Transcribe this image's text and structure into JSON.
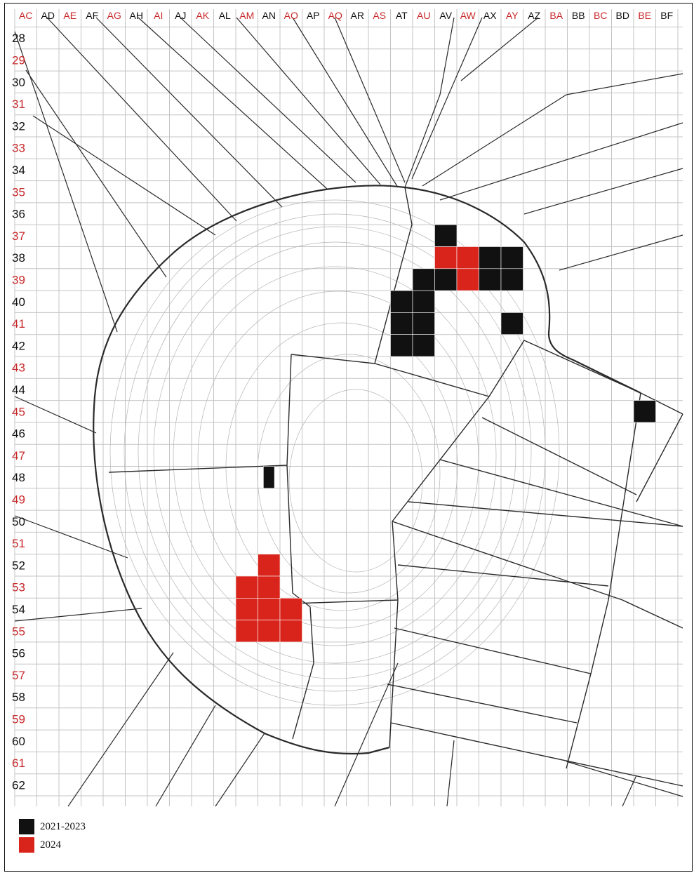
{
  "map": {
    "column_labels": [
      {
        "text": "AC",
        "color": "red"
      },
      {
        "text": "AD",
        "color": "black"
      },
      {
        "text": "AE",
        "color": "red"
      },
      {
        "text": "AF",
        "color": "black"
      },
      {
        "text": "AG",
        "color": "red"
      },
      {
        "text": "AH",
        "color": "black"
      },
      {
        "text": "AI",
        "color": "red"
      },
      {
        "text": "AJ",
        "color": "black"
      },
      {
        "text": "AK",
        "color": "red"
      },
      {
        "text": "AL",
        "color": "black"
      },
      {
        "text": "AM",
        "color": "red"
      },
      {
        "text": "AN",
        "color": "black"
      },
      {
        "text": "AO",
        "color": "red"
      },
      {
        "text": "AP",
        "color": "black"
      },
      {
        "text": "AQ",
        "color": "red"
      },
      {
        "text": "AR",
        "color": "black"
      },
      {
        "text": "AS",
        "color": "red"
      },
      {
        "text": "AT",
        "color": "black"
      },
      {
        "text": "AU",
        "color": "red"
      },
      {
        "text": "AV",
        "color": "black"
      },
      {
        "text": "AW",
        "color": "red"
      },
      {
        "text": "AX",
        "color": "black"
      },
      {
        "text": "AY",
        "color": "red"
      },
      {
        "text": "AZ",
        "color": "black"
      },
      {
        "text": "BA",
        "color": "red"
      },
      {
        "text": "BB",
        "color": "black"
      },
      {
        "text": "BC",
        "color": "red"
      },
      {
        "text": "BD",
        "color": "black"
      },
      {
        "text": "BE",
        "color": "red"
      },
      {
        "text": "BF",
        "color": "black"
      }
    ],
    "row_labels": [
      {
        "text": "28",
        "color": "black"
      },
      {
        "text": "29",
        "color": "red"
      },
      {
        "text": "30",
        "color": "black"
      },
      {
        "text": "31",
        "color": "red"
      },
      {
        "text": "32",
        "color": "black"
      },
      {
        "text": "33",
        "color": "red"
      },
      {
        "text": "34",
        "color": "black"
      },
      {
        "text": "35",
        "color": "red"
      },
      {
        "text": "36",
        "color": "black"
      },
      {
        "text": "37",
        "color": "red"
      },
      {
        "text": "38",
        "color": "black"
      },
      {
        "text": "39",
        "color": "red"
      },
      {
        "text": "40",
        "color": "black"
      },
      {
        "text": "41",
        "color": "red"
      },
      {
        "text": "42",
        "color": "black"
      },
      {
        "text": "43",
        "color": "red"
      },
      {
        "text": "44",
        "color": "black"
      },
      {
        "text": "45",
        "color": "red"
      },
      {
        "text": "46",
        "color": "black"
      },
      {
        "text": "47",
        "color": "red"
      },
      {
        "text": "48",
        "color": "black"
      },
      {
        "text": "49",
        "color": "red"
      },
      {
        "text": "50",
        "color": "black"
      },
      {
        "text": "51",
        "color": "red"
      },
      {
        "text": "52",
        "color": "black"
      },
      {
        "text": "53",
        "color": "red"
      },
      {
        "text": "54",
        "color": "black"
      },
      {
        "text": "55",
        "color": "red"
      },
      {
        "text": "56",
        "color": "black"
      },
      {
        "text": "57",
        "color": "red"
      },
      {
        "text": "58",
        "color": "black"
      },
      {
        "text": "59",
        "color": "red"
      },
      {
        "text": "60",
        "color": "black"
      },
      {
        "text": "61",
        "color": "red"
      },
      {
        "text": "62",
        "color": "black"
      }
    ],
    "excavated_units": [
      {
        "col": "AV",
        "row": "37",
        "period": "2021-2023"
      },
      {
        "col": "AV",
        "row": "38",
        "period": "2024"
      },
      {
        "col": "AW",
        "row": "38",
        "period": "2024"
      },
      {
        "col": "AX",
        "row": "38",
        "period": "2021-2023"
      },
      {
        "col": "AY",
        "row": "38",
        "period": "2021-2023"
      },
      {
        "col": "AU",
        "row": "39",
        "period": "2021-2023"
      },
      {
        "col": "AV",
        "row": "39",
        "period": "2021-2023"
      },
      {
        "col": "AW",
        "row": "39",
        "period": "2024"
      },
      {
        "col": "AX",
        "row": "39",
        "period": "2021-2023"
      },
      {
        "col": "AY",
        "row": "39",
        "period": "2021-2023"
      },
      {
        "col": "AT",
        "row": "40",
        "period": "2021-2023"
      },
      {
        "col": "AU",
        "row": "40",
        "period": "2021-2023"
      },
      {
        "col": "AT",
        "row": "41",
        "period": "2021-2023"
      },
      {
        "col": "AU",
        "row": "41",
        "period": "2021-2023"
      },
      {
        "col": "AY",
        "row": "41",
        "period": "2021-2023"
      },
      {
        "col": "AT",
        "row": "42",
        "period": "2021-2023"
      },
      {
        "col": "AU",
        "row": "42",
        "period": "2021-2023"
      },
      {
        "col": "BE",
        "row": "45",
        "period": "2021-2023"
      },
      {
        "col": "AN",
        "row": "48",
        "period": "2021-2023",
        "partial": true
      },
      {
        "col": "AN",
        "row": "52",
        "period": "2024"
      },
      {
        "col": "AM",
        "row": "53",
        "period": "2024"
      },
      {
        "col": "AN",
        "row": "53",
        "period": "2024"
      },
      {
        "col": "AM",
        "row": "54",
        "period": "2024"
      },
      {
        "col": "AN",
        "row": "54",
        "period": "2024"
      },
      {
        "col": "AO",
        "row": "54",
        "period": "2024"
      },
      {
        "col": "AM",
        "row": "55",
        "period": "2024"
      },
      {
        "col": "AN",
        "row": "55",
        "period": "2024"
      },
      {
        "col": "AO",
        "row": "55",
        "period": "2024"
      }
    ]
  },
  "legend": {
    "items": [
      {
        "label": "2021-2023",
        "color": "#111111"
      },
      {
        "label": "2024",
        "color": "#d9241c"
      }
    ]
  },
  "colors": {
    "red_label": "#c8282a",
    "black_label": "#111111",
    "grid": "#c4c4c4",
    "parcel_line": "#2a2a2a",
    "contour": "#b5b5b5"
  }
}
